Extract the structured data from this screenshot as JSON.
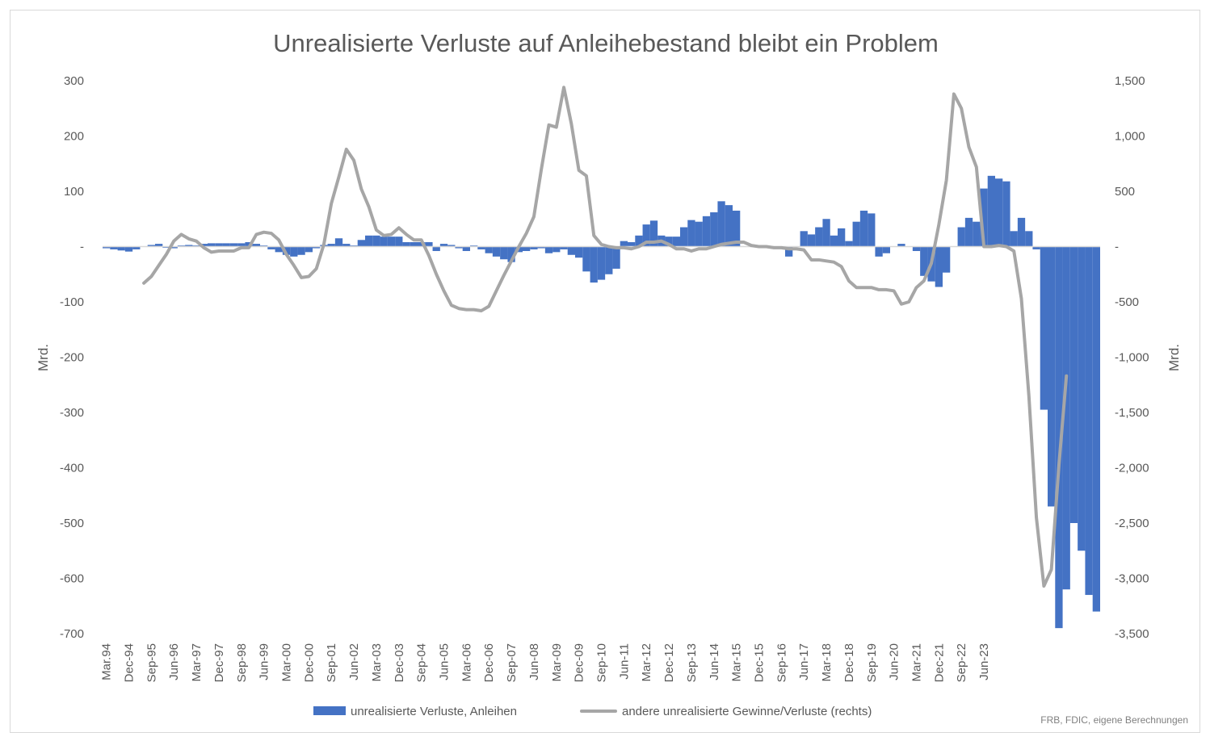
{
  "chart_data": {
    "type": "bar",
    "title": "Unrealisierte Verluste auf Anleihebestand bleibt ein Problem",
    "ylabel": "Mrd.",
    "y2label": "Mrd.",
    "ylim": [
      -700,
      300
    ],
    "y2lim": [
      -3500,
      1500
    ],
    "y_ticks": [
      "300",
      "200",
      "100",
      "-",
      "-100",
      "-200",
      "-300",
      "-400",
      "-500",
      "-600",
      "-700"
    ],
    "y2_ticks": [
      "1,500",
      "1,000",
      "500",
      "-",
      "-500",
      "-1,000",
      "-1,500",
      "-2,000",
      "-2,500",
      "-3,000",
      "-3,500"
    ],
    "x_tick_labels": [
      "Mar.94",
      "Dec-94",
      "Sep-95",
      "Jun-96",
      "Mar-97",
      "Dec-97",
      "Sep-98",
      "Jun-99",
      "Mar-00",
      "Dec-00",
      "Sep-01",
      "Jun-02",
      "Mar-03",
      "Dec-03",
      "Sep-04",
      "Jun-05",
      "Mar-06",
      "Dec-06",
      "Sep-07",
      "Jun-08",
      "Mar-09",
      "Dec-09",
      "Sep-10",
      "Jun-11",
      "Mar-12",
      "Dec-12",
      "Sep-13",
      "Jun-14",
      "Mar-15",
      "Dec-15",
      "Sep-16",
      "Jun-17",
      "Mar-18",
      "Dec-18",
      "Sep-19",
      "Jun-20",
      "Mar-21",
      "Dec-21",
      "Sep-22",
      "Jun-23"
    ],
    "grid": false,
    "legend_position": "bottom",
    "series": [
      {
        "name": "unrealisierte Verluste, Anleihen",
        "type": "bar",
        "axis": "left",
        "color": "#4472C4",
        "values": [
          -3,
          -5,
          -7,
          -9,
          -5,
          0,
          3,
          5,
          -2,
          -3,
          2,
          3,
          2,
          5,
          6,
          6,
          6,
          6,
          6,
          8,
          5,
          2,
          -5,
          -10,
          -15,
          -18,
          -15,
          -10,
          -3,
          3,
          5,
          15,
          5,
          2,
          12,
          20,
          20,
          18,
          18,
          18,
          8,
          8,
          8,
          8,
          -8,
          5,
          3,
          -3,
          -8,
          2,
          -5,
          -12,
          -18,
          -23,
          -28,
          -10,
          -8,
          -5,
          -3,
          -12,
          -10,
          -5,
          -15,
          -20,
          -45,
          -65,
          -60,
          -50,
          -40,
          10,
          8,
          20,
          40,
          47,
          20,
          18,
          18,
          35,
          48,
          45,
          55,
          62,
          82,
          75,
          65,
          0,
          0,
          0,
          0,
          0,
          0,
          -18,
          0,
          28,
          22,
          35,
          50,
          20,
          33,
          10,
          45,
          65,
          60,
          -18,
          -12,
          0,
          5,
          0,
          -8,
          -53,
          -63,
          -73,
          -47,
          0,
          35,
          52,
          45,
          105,
          128,
          123,
          118,
          28,
          52,
          28,
          -5,
          -295,
          -470,
          -690,
          -620,
          -500,
          -550,
          -630,
          -660
        ]
      },
      {
        "name": "andere unrealisierte Gewinne/Verluste (rechts)",
        "type": "line",
        "axis": "right",
        "color": "#a6a6a6",
        "values": [
          null,
          null,
          null,
          null,
          null,
          -330,
          -270,
          -170,
          -70,
          50,
          110,
          70,
          50,
          -10,
          -50,
          -40,
          -40,
          -40,
          -10,
          -10,
          110,
          130,
          120,
          60,
          -70,
          -170,
          -280,
          -270,
          -200,
          20,
          390,
          630,
          880,
          780,
          520,
          360,
          150,
          100,
          110,
          170,
          110,
          60,
          60,
          -80,
          -250,
          -400,
          -530,
          -560,
          -570,
          -570,
          -580,
          -540,
          -400,
          -260,
          -130,
          0,
          120,
          270,
          700,
          1100,
          1080,
          1440,
          1110,
          690,
          640,
          100,
          20,
          0,
          -10,
          -10,
          -20,
          0,
          40,
          40,
          50,
          20,
          -20,
          -20,
          -40,
          -20,
          -20,
          0,
          20,
          30,
          40,
          40,
          10,
          0,
          0,
          -10,
          -10,
          -20,
          -20,
          -30,
          -120,
          -120,
          -130,
          -140,
          -180,
          -310,
          -370,
          -370,
          -370,
          -390,
          -390,
          -400,
          -520,
          -500,
          -370,
          -310,
          -150,
          200,
          600,
          1380,
          1250,
          900,
          720,
          0,
          0,
          10,
          0,
          -40,
          -470,
          -1350,
          -2450,
          -3070,
          -2920,
          -1980,
          -1170
        ]
      }
    ],
    "source_note": "FRB, FDIC, eigene Berechnungen"
  }
}
